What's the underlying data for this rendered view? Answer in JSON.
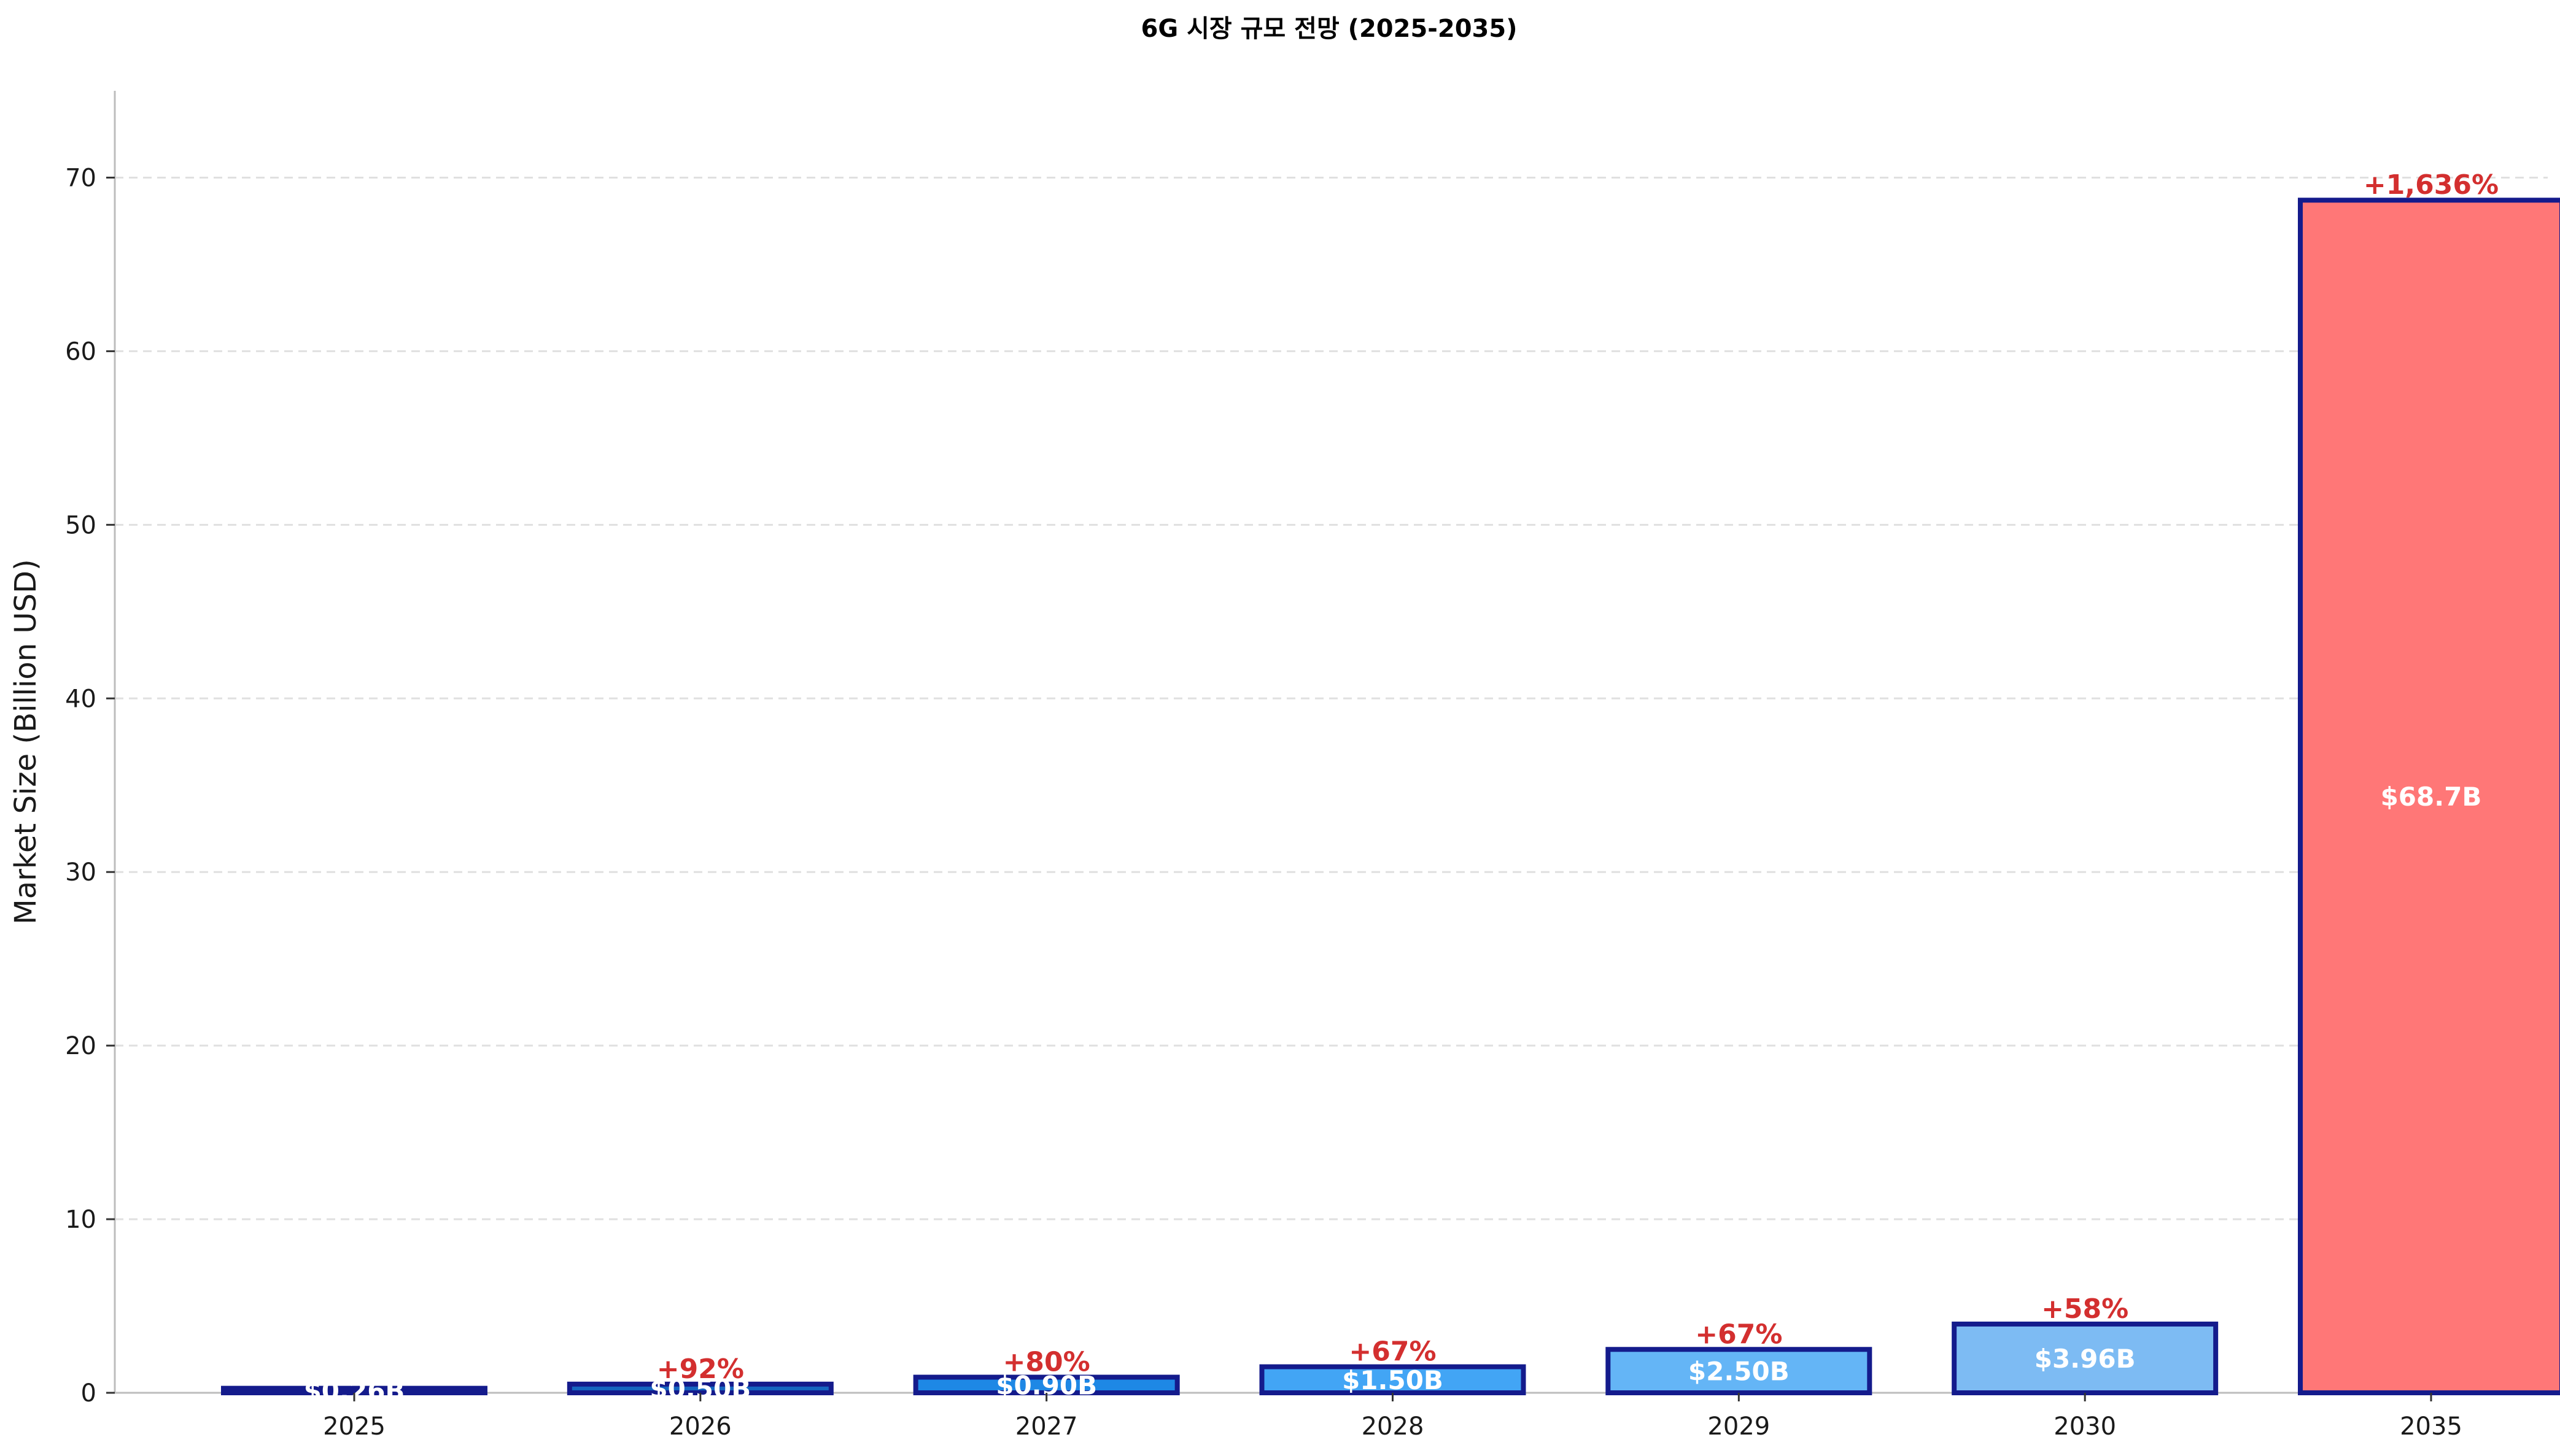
{
  "chart_data": {
    "type": "bar",
    "title": "6G 시장 규모 전망 (2025-2035)",
    "xlabel": "",
    "ylabel": "Market Size (Billion USD)",
    "ylim": [
      0,
      75
    ],
    "yticks": [
      0,
      10,
      20,
      30,
      40,
      50,
      60,
      70
    ],
    "grid": true,
    "categories": [
      "2025",
      "2026",
      "2027",
      "2028",
      "2029",
      "2030",
      "2035"
    ],
    "values": [
      0.26,
      0.5,
      0.9,
      1.5,
      2.5,
      3.96,
      68.7
    ],
    "value_labels": [
      "$0.26B",
      "$0.50B",
      "$0.90B",
      "$1.50B",
      "$2.50B",
      "$3.96B",
      "$68.7B"
    ],
    "growth_labels": [
      "",
      "+92%",
      "+80%",
      "+67%",
      "+67%",
      "+58%",
      "+1,636%"
    ],
    "bar_colors": [
      "#0d1a8c",
      "#1565c0",
      "#1e88e5",
      "#42a5f5",
      "#64b5f6",
      "#7dbbf3",
      "#ff7777"
    ],
    "bar_edge_color": "#141b8c",
    "growth_label_color": "#d32f2f",
    "grid_color": "#e0e0e0",
    "axis_color": "#bdbdbd"
  }
}
